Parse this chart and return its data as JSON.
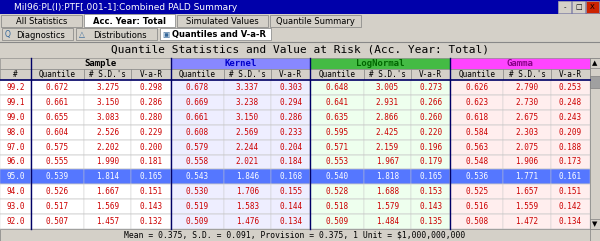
{
  "title_bar": "MiI96:PL(I):PTF[.001-1]:Combined PALD Summary",
  "tabs_top": [
    "All Statistics",
    "Acc. Year: Total",
    "Simulated Values",
    "Quantile Summary"
  ],
  "tabs_active_top": "Acc. Year: Total",
  "tabs_bottom": [
    "Diagnostics",
    "Distributions",
    "Quantiles and V-a-R"
  ],
  "tabs_active_bottom": "Quantiles and V-a-R",
  "main_title": "Quantile Statistics and Value at Risk (Acc. Year: Total)",
  "highlight_row": 6,
  "rows": [
    [
      99.2,
      0.672,
      3.275,
      0.298,
      0.678,
      3.337,
      0.303,
      0.648,
      3.005,
      0.273,
      0.626,
      2.79,
      0.253
    ],
    [
      99.1,
      0.661,
      3.15,
      0.286,
      0.669,
      3.238,
      0.294,
      0.641,
      2.931,
      0.266,
      0.623,
      2.73,
      0.248
    ],
    [
      99.0,
      0.655,
      3.083,
      0.28,
      0.661,
      3.15,
      0.286,
      0.635,
      2.866,
      0.26,
      0.618,
      2.675,
      0.243
    ],
    [
      98.0,
      0.604,
      2.526,
      0.229,
      0.608,
      2.569,
      0.233,
      0.595,
      2.425,
      0.22,
      0.584,
      2.303,
      0.209
    ],
    [
      97.0,
      0.575,
      2.202,
      0.2,
      0.579,
      2.244,
      0.204,
      0.571,
      2.159,
      0.196,
      0.563,
      2.075,
      0.188
    ],
    [
      96.0,
      0.555,
      1.99,
      0.181,
      0.558,
      2.021,
      0.184,
      0.553,
      1.967,
      0.179,
      0.548,
      1.906,
      0.173
    ],
    [
      95.0,
      0.539,
      1.814,
      0.165,
      0.543,
      1.846,
      0.168,
      0.54,
      1.818,
      0.165,
      0.536,
      1.771,
      0.161
    ],
    [
      94.0,
      0.526,
      1.667,
      0.151,
      0.53,
      1.706,
      0.155,
      0.528,
      1.688,
      0.153,
      0.525,
      1.657,
      0.151
    ],
    [
      93.0,
      0.517,
      1.569,
      0.143,
      0.519,
      1.583,
      0.144,
      0.518,
      1.579,
      0.143,
      0.516,
      1.559,
      0.142
    ],
    [
      92.0,
      0.507,
      1.457,
      0.132,
      0.509,
      1.476,
      0.134,
      0.509,
      1.484,
      0.135,
      0.508,
      1.472,
      0.134
    ]
  ],
  "footer": "Mean = 0.375, S.D. = 0.091, Provision = 0.375, 1 Unit = $1,000,000,000",
  "win_bg": "#d4d0c8",
  "title_bar_bg": "#0000aa",
  "title_bar_fg": "#ffffff",
  "tab_bg": "#d4d0c8",
  "tab_active_bg": "#ffffff",
  "tab_bar_bg": "#d4d0c8",
  "main_title_bg": "#d4d0c8",
  "main_title_fg": "#000000",
  "group_colors": {
    "": "#d4d0c8",
    "Sample": "#d4d0c8",
    "Kernel": "#8888ff",
    "LogNormal": "#44bb44",
    "Gamma": "#ff44ff"
  },
  "group_header_fg": {
    "": "#000000",
    "Sample": "#000000",
    "Kernel": "#0000cc",
    "LogNormal": "#006600",
    "Gamma": "#880088"
  },
  "subheader_bg": "#d4d0c8",
  "subheader_fg": "#000000",
  "cell_bg_sample": "#ffffff",
  "cell_bg_kernel": "#eeeeff",
  "cell_bg_lognormal": "#eeffee",
  "cell_bg_gamma": "#ffeeee",
  "cell_fg_rownum": "#cc0000",
  "cell_fg_data": "#cc0000",
  "highlight_bg": "#5577ff",
  "highlight_fg": "#ffffff",
  "scroll_bg": "#d4d0c8",
  "footer_bg": "#d4d0c8",
  "footer_fg": "#000000",
  "border_color": "#808080",
  "thick_border_color": "#000066"
}
